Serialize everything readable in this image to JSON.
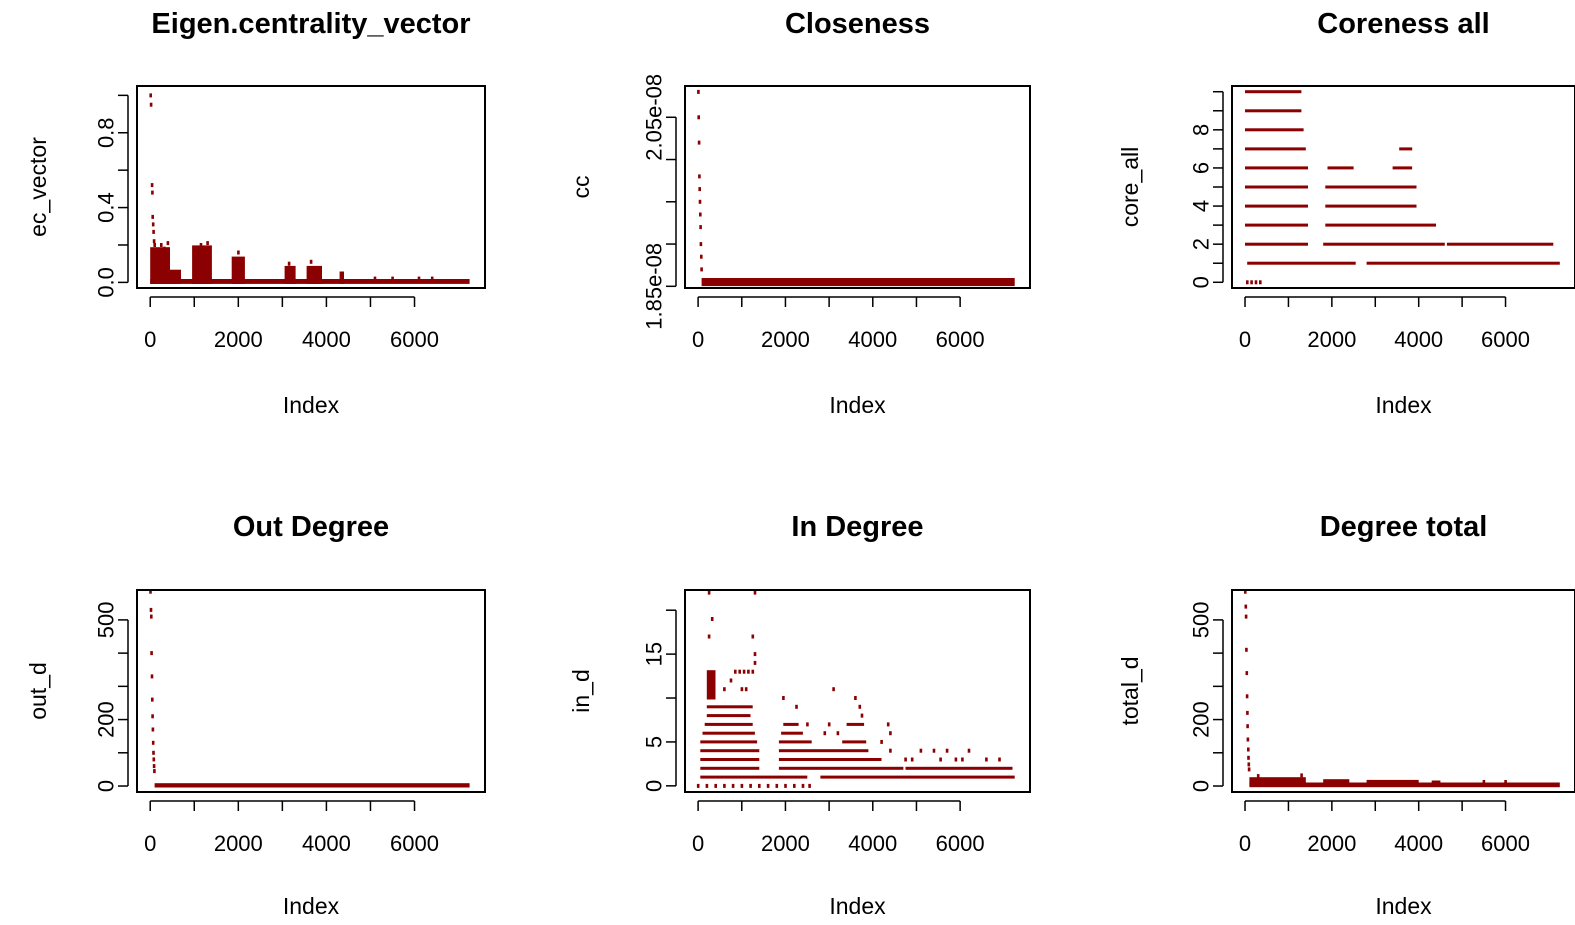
{
  "colors": {
    "points": "#8B0000",
    "axis": "#000000",
    "background": "#ffffff"
  },
  "chart_data": [
    {
      "type": "scatter",
      "title": "Eigen.centrality_vector",
      "xlabel": "Index",
      "ylabel": "ec_vector",
      "xlim": [
        -300,
        7600
      ],
      "ylim": [
        -0.03,
        1.05
      ],
      "xticks": [
        "0",
        "2000",
        "4000",
        "6000"
      ],
      "xtick_values": [
        0,
        2000,
        4000,
        6000
      ],
      "yticks": [
        "0.0",
        "0.4",
        "0.8"
      ],
      "ytick_values": [
        0.0,
        0.4,
        0.8
      ],
      "ytick_minor": [
        0.2,
        0.6,
        1.0
      ],
      "n": 7250,
      "segments": [
        {
          "x0": 0,
          "x1": 7250,
          "lo": 0.0,
          "hi": 0.01
        },
        {
          "x0": 0,
          "x1": 450,
          "lo": 0.0,
          "hi": 0.18
        },
        {
          "x0": 450,
          "x1": 700,
          "lo": 0.0,
          "hi": 0.06
        },
        {
          "x0": 950,
          "x1": 1400,
          "lo": 0.0,
          "hi": 0.19
        },
        {
          "x0": 1850,
          "x1": 2150,
          "lo": 0.0,
          "hi": 0.13
        },
        {
          "x0": 3050,
          "x1": 3300,
          "lo": 0.0,
          "hi": 0.08
        },
        {
          "x0": 3550,
          "x1": 3900,
          "lo": 0.0,
          "hi": 0.08
        },
        {
          "x0": 4300,
          "x1": 4400,
          "lo": 0.0,
          "hi": 0.05
        }
      ],
      "points": [
        {
          "x": 8,
          "y": 1.0
        },
        {
          "x": 18,
          "y": 0.95
        },
        {
          "x": 40,
          "y": 0.52
        },
        {
          "x": 48,
          "y": 0.48
        },
        {
          "x": 55,
          "y": 0.35
        },
        {
          "x": 65,
          "y": 0.31
        },
        {
          "x": 75,
          "y": 0.27
        },
        {
          "x": 85,
          "y": 0.22
        },
        {
          "x": 100,
          "y": 0.2
        },
        {
          "x": 160,
          "y": 0.17
        },
        {
          "x": 250,
          "y": 0.2
        },
        {
          "x": 320,
          "y": 0.18
        },
        {
          "x": 400,
          "y": 0.21
        },
        {
          "x": 1150,
          "y": 0.2
        },
        {
          "x": 1300,
          "y": 0.21
        },
        {
          "x": 2000,
          "y": 0.16
        },
        {
          "x": 3150,
          "y": 0.1
        },
        {
          "x": 3650,
          "y": 0.11
        },
        {
          "x": 5100,
          "y": 0.02
        },
        {
          "x": 5500,
          "y": 0.02
        },
        {
          "x": 6100,
          "y": 0.02
        },
        {
          "x": 6400,
          "y": 0.02
        }
      ]
    },
    {
      "type": "scatter",
      "title": "Closeness",
      "xlabel": "Index",
      "ylabel": "cc",
      "xlim": [
        -300,
        7600
      ],
      "ylim": [
        1.848e-08,
        2.087e-08
      ],
      "xticks": [
        "0",
        "2000",
        "4000",
        "6000"
      ],
      "xtick_values": [
        0,
        2000,
        4000,
        6000
      ],
      "yticks": [
        "1.85e-08",
        "2.05e-08"
      ],
      "ytick_values": [
        1.85e-08,
        2.05e-08
      ],
      "ytick_minor": [
        1.9e-08,
        1.95e-08,
        2e-08
      ],
      "n": 7250,
      "segments": [
        {
          "x0": 80,
          "x1": 7250,
          "lo": 1.852e-08,
          "hi": 1.858e-08
        }
      ],
      "points": [
        {
          "x": 5,
          "y": 2.08e-08
        },
        {
          "x": 12,
          "y": 2.05e-08
        },
        {
          "x": 20,
          "y": 2.02e-08
        },
        {
          "x": 28,
          "y": 1.98e-08
        },
        {
          "x": 35,
          "y": 1.965e-08
        },
        {
          "x": 42,
          "y": 1.95e-08
        },
        {
          "x": 48,
          "y": 1.935e-08
        },
        {
          "x": 55,
          "y": 1.92e-08
        },
        {
          "x": 62,
          "y": 1.9e-08
        },
        {
          "x": 70,
          "y": 1.885e-08
        },
        {
          "x": 78,
          "y": 1.87e-08
        }
      ]
    },
    {
      "type": "scatter",
      "title": "Coreness all",
      "xlabel": "Index",
      "ylabel": "core_all",
      "xlim": [
        -300,
        7600
      ],
      "ylim": [
        -0.3,
        10.3
      ],
      "xticks": [
        "0",
        "2000",
        "4000",
        "6000"
      ],
      "xtick_values": [
        0,
        2000,
        4000,
        6000
      ],
      "yticks": [
        "0",
        "2",
        "4",
        "6",
        "8"
      ],
      "ytick_values": [
        0,
        2,
        4,
        6,
        8
      ],
      "ytick_minor": [
        1,
        3,
        5,
        7,
        9,
        10
      ],
      "n": 7250,
      "segments": [
        {
          "x0": 50,
          "x1": 2550,
          "lo": 1,
          "hi": 1
        },
        {
          "x0": 2800,
          "x1": 7250,
          "lo": 1,
          "hi": 1
        },
        {
          "x0": 0,
          "x1": 1450,
          "lo": 2,
          "hi": 2
        },
        {
          "x0": 1800,
          "x1": 4600,
          "lo": 2,
          "hi": 2
        },
        {
          "x0": 4650,
          "x1": 7100,
          "lo": 2,
          "hi": 2
        },
        {
          "x0": 0,
          "x1": 1450,
          "lo": 3,
          "hi": 3
        },
        {
          "x0": 1850,
          "x1": 4400,
          "lo": 3,
          "hi": 3
        },
        {
          "x0": 0,
          "x1": 1450,
          "lo": 4,
          "hi": 4
        },
        {
          "x0": 1850,
          "x1": 3950,
          "lo": 4,
          "hi": 4
        },
        {
          "x0": 0,
          "x1": 1450,
          "lo": 5,
          "hi": 5
        },
        {
          "x0": 1850,
          "x1": 3950,
          "lo": 5,
          "hi": 5
        },
        {
          "x0": 0,
          "x1": 1450,
          "lo": 6,
          "hi": 6
        },
        {
          "x0": 1900,
          "x1": 2500,
          "lo": 6,
          "hi": 6
        },
        {
          "x0": 3400,
          "x1": 3850,
          "lo": 6,
          "hi": 6
        },
        {
          "x0": 0,
          "x1": 1400,
          "lo": 7,
          "hi": 7
        },
        {
          "x0": 3550,
          "x1": 3850,
          "lo": 7,
          "hi": 7
        },
        {
          "x0": 0,
          "x1": 1350,
          "lo": 8,
          "hi": 8
        },
        {
          "x0": 0,
          "x1": 1300,
          "lo": 9,
          "hi": 9
        },
        {
          "x0": 0,
          "x1": 1300,
          "lo": 10,
          "hi": 10
        }
      ],
      "points": [
        {
          "x": 50,
          "y": 0
        },
        {
          "x": 150,
          "y": 0
        },
        {
          "x": 250,
          "y": 0
        },
        {
          "x": 350,
          "y": 0
        }
      ]
    },
    {
      "type": "scatter",
      "title": "Out Degree",
      "xlabel": "Index",
      "ylabel": "out_d",
      "xlim": [
        -300,
        7600
      ],
      "ylim": [
        -18,
        590
      ],
      "xticks": [
        "0",
        "2000",
        "4000",
        "6000"
      ],
      "xtick_values": [
        0,
        2000,
        4000,
        6000
      ],
      "yticks": [
        "0",
        "200",
        "500"
      ],
      "ytick_values": [
        0,
        200,
        500
      ],
      "ytick_minor": [
        100,
        300,
        400
      ],
      "n": 7250,
      "segments": [
        {
          "x0": 100,
          "x1": 7250,
          "lo": 0,
          "hi": 4
        }
      ],
      "points": [
        {
          "x": 5,
          "y": 585
        },
        {
          "x": 15,
          "y": 530
        },
        {
          "x": 22,
          "y": 510
        },
        {
          "x": 30,
          "y": 400
        },
        {
          "x": 38,
          "y": 330
        },
        {
          "x": 45,
          "y": 260
        },
        {
          "x": 52,
          "y": 210
        },
        {
          "x": 58,
          "y": 170
        },
        {
          "x": 65,
          "y": 130
        },
        {
          "x": 72,
          "y": 100
        },
        {
          "x": 78,
          "y": 80
        },
        {
          "x": 85,
          "y": 60
        },
        {
          "x": 92,
          "y": 45
        }
      ]
    },
    {
      "type": "scatter",
      "title": "In Degree",
      "xlabel": "Index",
      "ylabel": "in_d",
      "xlim": [
        -300,
        7600
      ],
      "ylim": [
        -0.7,
        22.3
      ],
      "xticks": [
        "0",
        "2000",
        "4000",
        "6000"
      ],
      "xtick_values": [
        0,
        2000,
        4000,
        6000
      ],
      "yticks": [
        "0",
        "5",
        "15"
      ],
      "ytick_values": [
        0,
        5,
        15
      ],
      "ytick_minor": [
        10,
        20
      ],
      "n": 7250,
      "segments": [
        {
          "x0": 50,
          "x1": 2500,
          "lo": 1,
          "hi": 1
        },
        {
          "x0": 2800,
          "x1": 7250,
          "lo": 1,
          "hi": 1
        },
        {
          "x0": 50,
          "x1": 1400,
          "lo": 2,
          "hi": 2
        },
        {
          "x0": 1850,
          "x1": 4700,
          "lo": 2,
          "hi": 2
        },
        {
          "x0": 4750,
          "x1": 7200,
          "lo": 2,
          "hi": 2
        },
        {
          "x0": 50,
          "x1": 1400,
          "lo": 3,
          "hi": 3
        },
        {
          "x0": 1850,
          "x1": 4200,
          "lo": 3,
          "hi": 3
        },
        {
          "x0": 50,
          "x1": 1400,
          "lo": 4,
          "hi": 4
        },
        {
          "x0": 1850,
          "x1": 3900,
          "lo": 4,
          "hi": 4
        },
        {
          "x0": 50,
          "x1": 1350,
          "lo": 5,
          "hi": 5
        },
        {
          "x0": 1850,
          "x1": 2600,
          "lo": 5,
          "hi": 5
        },
        {
          "x0": 3300,
          "x1": 3850,
          "lo": 5,
          "hi": 5
        },
        {
          "x0": 100,
          "x1": 1300,
          "lo": 6,
          "hi": 6
        },
        {
          "x0": 1900,
          "x1": 2400,
          "lo": 6,
          "hi": 6
        },
        {
          "x0": 150,
          "x1": 1250,
          "lo": 7,
          "hi": 7
        },
        {
          "x0": 1950,
          "x1": 2300,
          "lo": 7,
          "hi": 7
        },
        {
          "x0": 3400,
          "x1": 3800,
          "lo": 7,
          "hi": 7
        },
        {
          "x0": 200,
          "x1": 1200,
          "lo": 8,
          "hi": 8
        },
        {
          "x0": 200,
          "x1": 1250,
          "lo": 9,
          "hi": 9
        },
        {
          "x0": 200,
          "x1": 400,
          "lo": 10,
          "hi": 13
        }
      ],
      "points": [
        {
          "x": 0,
          "y": 0
        },
        {
          "x": 200,
          "y": 0
        },
        {
          "x": 400,
          "y": 0
        },
        {
          "x": 600,
          "y": 0
        },
        {
          "x": 800,
          "y": 0
        },
        {
          "x": 1000,
          "y": 0
        },
        {
          "x": 1200,
          "y": 0
        },
        {
          "x": 1400,
          "y": 0
        },
        {
          "x": 1600,
          "y": 0
        },
        {
          "x": 1800,
          "y": 0
        },
        {
          "x": 2000,
          "y": 0
        },
        {
          "x": 2200,
          "y": 0
        },
        {
          "x": 2400,
          "y": 0
        },
        {
          "x": 2550,
          "y": 0
        },
        {
          "x": 250,
          "y": 22
        },
        {
          "x": 1300,
          "y": 22
        },
        {
          "x": 320,
          "y": 19
        },
        {
          "x": 250,
          "y": 17
        },
        {
          "x": 1250,
          "y": 17
        },
        {
          "x": 1300,
          "y": 15
        },
        {
          "x": 1300,
          "y": 14
        },
        {
          "x": 850,
          "y": 13
        },
        {
          "x": 950,
          "y": 13
        },
        {
          "x": 1050,
          "y": 13
        },
        {
          "x": 1150,
          "y": 13
        },
        {
          "x": 1250,
          "y": 13
        },
        {
          "x": 600,
          "y": 11
        },
        {
          "x": 750,
          "y": 12
        },
        {
          "x": 1000,
          "y": 11
        },
        {
          "x": 1100,
          "y": 11
        },
        {
          "x": 1950,
          "y": 10
        },
        {
          "x": 2250,
          "y": 9
        },
        {
          "x": 3100,
          "y": 11
        },
        {
          "x": 3600,
          "y": 10
        },
        {
          "x": 3700,
          "y": 9
        },
        {
          "x": 3750,
          "y": 8
        },
        {
          "x": 4350,
          "y": 7
        },
        {
          "x": 4400,
          "y": 6
        },
        {
          "x": 2500,
          "y": 7
        },
        {
          "x": 2900,
          "y": 6
        },
        {
          "x": 3000,
          "y": 7
        },
        {
          "x": 3200,
          "y": 6
        },
        {
          "x": 4200,
          "y": 5
        },
        {
          "x": 4400,
          "y": 4
        },
        {
          "x": 4750,
          "y": 3
        },
        {
          "x": 4900,
          "y": 3
        },
        {
          "x": 5100,
          "y": 4
        },
        {
          "x": 5400,
          "y": 4
        },
        {
          "x": 5550,
          "y": 3
        },
        {
          "x": 5700,
          "y": 4
        },
        {
          "x": 5900,
          "y": 3
        },
        {
          "x": 6050,
          "y": 3
        },
        {
          "x": 6200,
          "y": 4
        },
        {
          "x": 6600,
          "y": 3
        },
        {
          "x": 6900,
          "y": 3
        }
      ]
    },
    {
      "type": "scatter",
      "title": "Degree total",
      "xlabel": "Index",
      "ylabel": "total_d",
      "xlim": [
        -300,
        7600
      ],
      "ylim": [
        -18,
        590
      ],
      "xticks": [
        "0",
        "2000",
        "4000",
        "6000"
      ],
      "xtick_values": [
        0,
        2000,
        4000,
        6000
      ],
      "yticks": [
        "0",
        "200",
        "500"
      ],
      "ytick_values": [
        0,
        200,
        500
      ],
      "ytick_minor": [
        100,
        300,
        400
      ],
      "n": 7250,
      "segments": [
        {
          "x0": 100,
          "x1": 7250,
          "lo": 1,
          "hi": 6
        },
        {
          "x0": 100,
          "x1": 1400,
          "lo": 6,
          "hi": 22
        },
        {
          "x0": 1800,
          "x1": 2400,
          "lo": 6,
          "hi": 16
        },
        {
          "x0": 2800,
          "x1": 4000,
          "lo": 6,
          "hi": 14
        },
        {
          "x0": 4300,
          "x1": 4500,
          "lo": 6,
          "hi": 12
        }
      ],
      "points": [
        {
          "x": 5,
          "y": 585
        },
        {
          "x": 15,
          "y": 540
        },
        {
          "x": 22,
          "y": 510
        },
        {
          "x": 30,
          "y": 410
        },
        {
          "x": 38,
          "y": 340
        },
        {
          "x": 45,
          "y": 270
        },
        {
          "x": 52,
          "y": 220
        },
        {
          "x": 58,
          "y": 180
        },
        {
          "x": 65,
          "y": 140
        },
        {
          "x": 72,
          "y": 110
        },
        {
          "x": 78,
          "y": 85
        },
        {
          "x": 85,
          "y": 65
        },
        {
          "x": 92,
          "y": 50
        },
        {
          "x": 300,
          "y": 30
        },
        {
          "x": 1300,
          "y": 32
        },
        {
          "x": 5500,
          "y": 12
        },
        {
          "x": 6000,
          "y": 12
        }
      ]
    }
  ]
}
